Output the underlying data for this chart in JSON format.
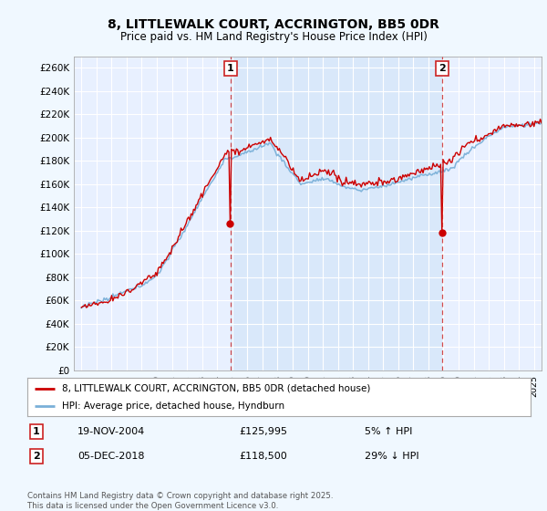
{
  "title": "8, LITTLEWALK COURT, ACCRINGTON, BB5 0DR",
  "subtitle": "Price paid vs. HM Land Registry's House Price Index (HPI)",
  "background_color": "#f0f8ff",
  "plot_bg_color": "#e8f0ff",
  "ylabel_ticks": [
    "£0",
    "£20K",
    "£40K",
    "£60K",
    "£80K",
    "£100K",
    "£120K",
    "£140K",
    "£160K",
    "£180K",
    "£200K",
    "£220K",
    "£240K",
    "£260K"
  ],
  "ytick_values": [
    0,
    20000,
    40000,
    60000,
    80000,
    100000,
    120000,
    140000,
    160000,
    180000,
    200000,
    220000,
    240000,
    260000
  ],
  "ylim": [
    0,
    270000
  ],
  "hpi_color": "#7ab0d8",
  "price_color": "#cc0000",
  "annotation_box_color": "#cc2222",
  "sale1_date_num": 2004.89,
  "sale1_price": 125995,
  "sale1_label": "1",
  "sale1_date_text": "19-NOV-2004",
  "sale1_price_text": "£125,995",
  "sale1_hpi_text": "5% ↑ HPI",
  "sale2_date_num": 2018.92,
  "sale2_price": 118500,
  "sale2_label": "2",
  "sale2_date_text": "05-DEC-2018",
  "sale2_price_text": "£118,500",
  "sale2_hpi_text": "29% ↓ HPI",
  "legend_line1": "8, LITTLEWALK COURT, ACCRINGTON, BB5 0DR (detached house)",
  "legend_line2": "HPI: Average price, detached house, Hyndburn",
  "footer": "Contains HM Land Registry data © Crown copyright and database right 2025.\nThis data is licensed under the Open Government Licence v3.0.",
  "xmin": 1994.5,
  "xmax": 2025.5,
  "shade_color": "#d0e4f7",
  "shade_alpha": 0.6
}
